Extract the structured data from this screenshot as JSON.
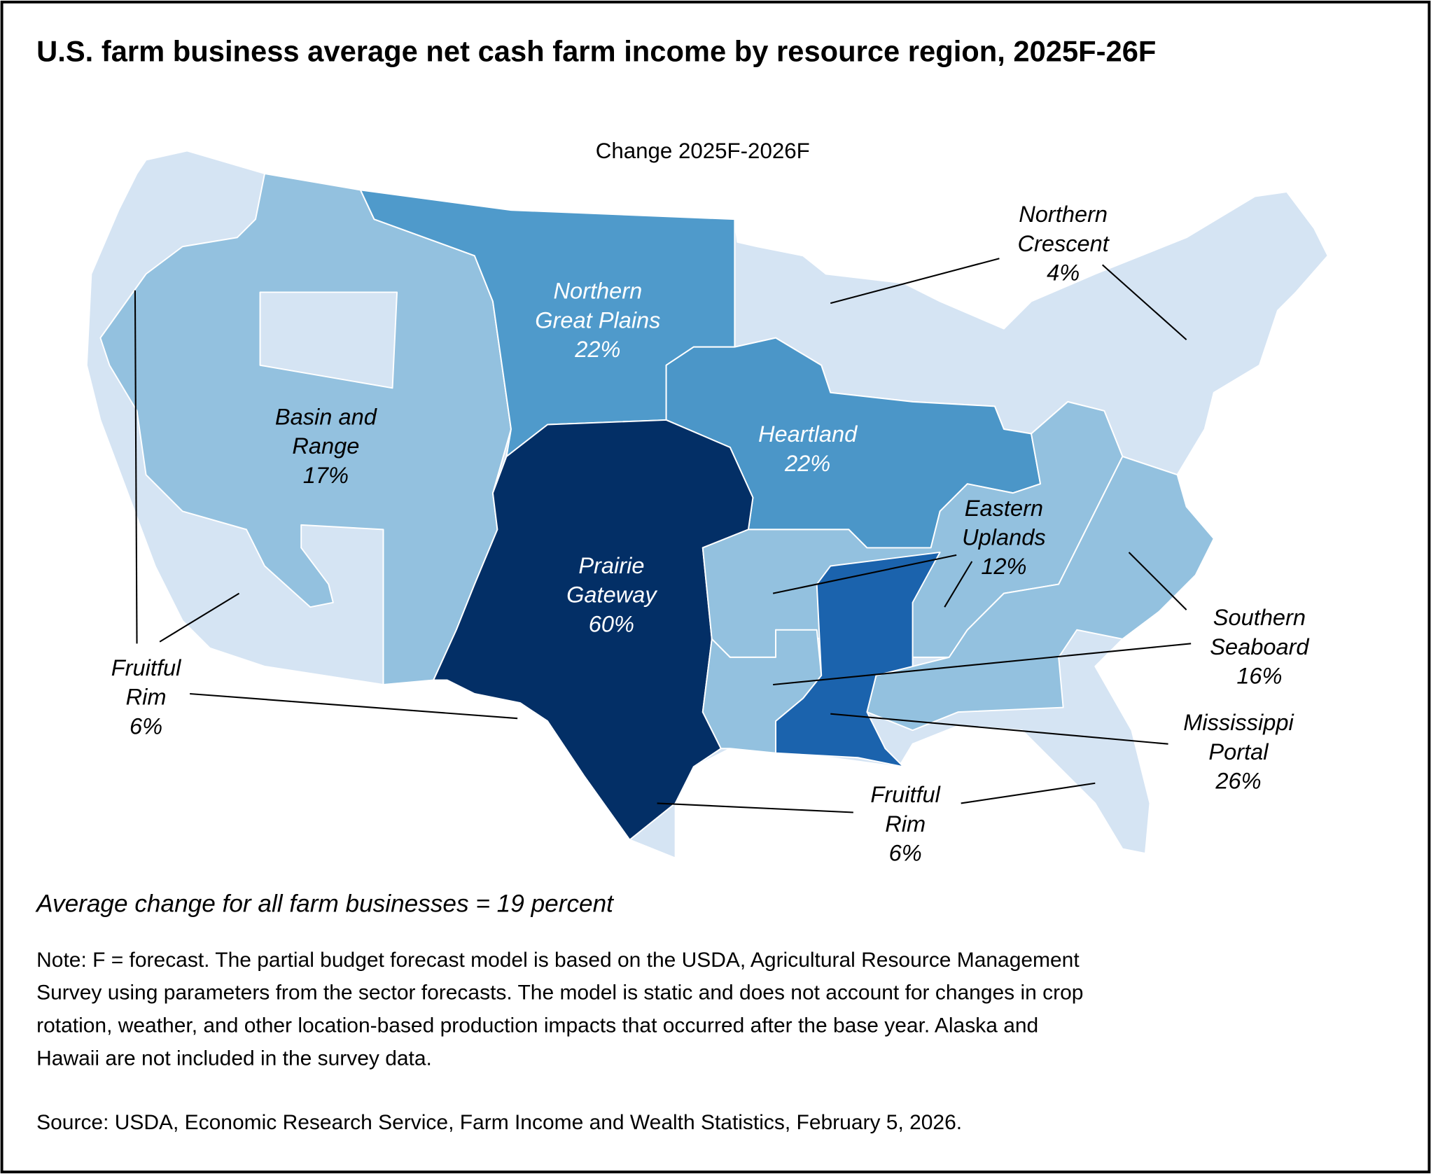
{
  "header": {
    "title": "U.S. farm business average net cash farm income by resource region, 2025F-26F"
  },
  "map": {
    "subtitle": "Change 2025F-2026F",
    "regions": [
      {
        "name_lines": [
          "Basin and",
          "Range"
        ],
        "label": "17%",
        "color": "#93c1df",
        "label_color": "#000000"
      },
      {
        "name_lines": [
          "Northern",
          "Great Plains"
        ],
        "label": "22%",
        "color": "#4f9acb",
        "label_color": "#ffffff"
      },
      {
        "name_lines": [
          "Heartland"
        ],
        "label": "22%",
        "color": "#4b96c8",
        "label_color": "#ffffff"
      },
      {
        "name_lines": [
          "Prairie",
          "Gateway"
        ],
        "label": "60%",
        "color": "#032f66",
        "label_color": "#ffffff"
      },
      {
        "name_lines": [
          "Eastern",
          "Uplands"
        ],
        "label": "12%",
        "color": "#93c1df",
        "label_color": "#000000"
      },
      {
        "name_lines": [
          "Mississippi",
          "Portal"
        ],
        "label": "26%",
        "color": "#1b63ad",
        "label_color": "#000000"
      },
      {
        "name_lines": [
          "Southern",
          "Seaboard"
        ],
        "label": "16%",
        "color": "#93c1df",
        "label_color": "#000000"
      },
      {
        "name_lines": [
          "Northern",
          "Crescent"
        ],
        "label": "4%",
        "color": "#d5e4f3",
        "label_color": "#000000"
      },
      {
        "name_lines": [
          "Fruitful",
          "Rim"
        ],
        "label": "6%",
        "color": "#d5e4f3",
        "label_color": "#000000"
      }
    ]
  },
  "footer": {
    "average": "Average change for all farm businesses = 19 percent",
    "note": [
      "Note: F = forecast. The partial budget forecast model is based on the USDA, Agricultural Resource Management",
      "Survey using parameters from the sector forecasts. The model is static and does not account for changes in crop",
      "rotation, weather, and other location-based production impacts that occurred after the base year. Alaska and",
      "Hawaii are not included in the survey data."
    ],
    "source": "Source: USDA, Economic Research Service, Farm Income and Wealth Statistics, February 5, 2026."
  }
}
